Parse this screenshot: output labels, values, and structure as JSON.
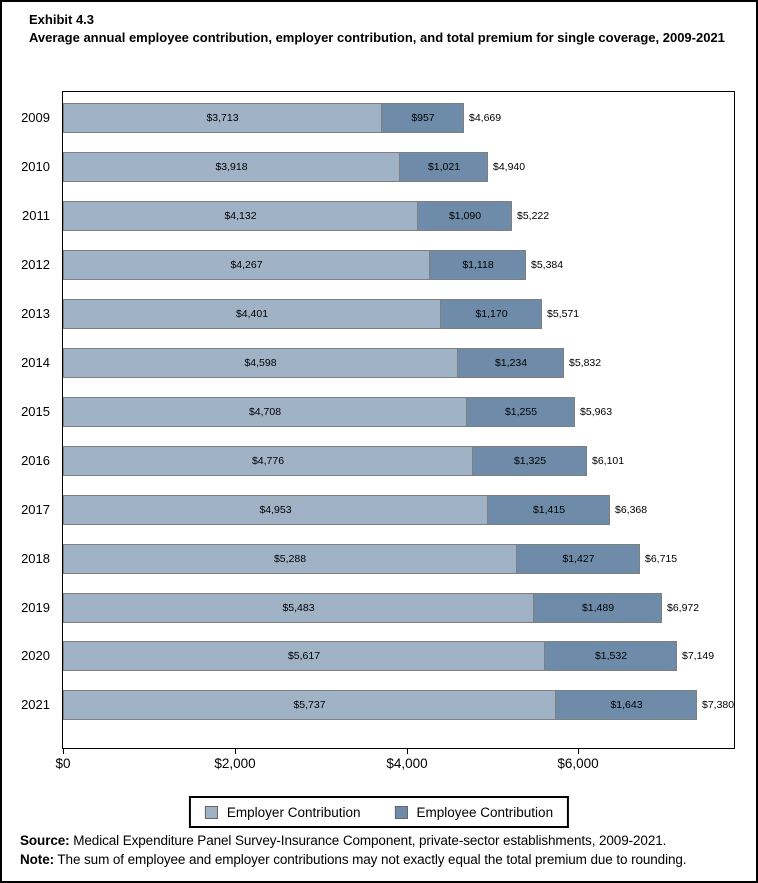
{
  "title": {
    "exhibit": "Exhibit 4.3",
    "text": "Average annual employee contribution, employer contribution, and total premium for single coverage, 2009-2021"
  },
  "chart_data": {
    "type": "bar",
    "orientation": "horizontal",
    "stacked": true,
    "title": "Average annual employee contribution, employer contribution, and total premium for single coverage, 2009-2021",
    "categories": [
      "2009",
      "2010",
      "2011",
      "2012",
      "2013",
      "2014",
      "2015",
      "2016",
      "2017",
      "2018",
      "2019",
      "2020",
      "2021"
    ],
    "series": [
      {
        "name": "Employer Contribution",
        "color": "#a0b2c6",
        "values": [
          3713,
          3918,
          4132,
          4267,
          4401,
          4598,
          4708,
          4776,
          4953,
          5288,
          5483,
          5617,
          5737
        ],
        "labels": [
          "$3,713",
          "$3,918",
          "$4,132",
          "$4,267",
          "$4,401",
          "$4,598",
          "$4,708",
          "$4,776",
          "$4,953",
          "$5,288",
          "$5,483",
          "$5,617",
          "$5,737"
        ]
      },
      {
        "name": "Employee Contribution",
        "color": "#6e8ca9",
        "values": [
          957,
          1021,
          1090,
          1118,
          1170,
          1234,
          1255,
          1325,
          1415,
          1427,
          1489,
          1532,
          1643
        ],
        "labels": [
          "$957",
          "$1,021",
          "$1,090",
          "$1,118",
          "$1,170",
          "$1,234",
          "$1,255",
          "$1,325",
          "$1,415",
          "$1,427",
          "$1,489",
          "$1,532",
          "$1,643"
        ]
      }
    ],
    "totals": [
      4669,
      4940,
      5222,
      5384,
      5571,
      5832,
      5963,
      6101,
      6368,
      6715,
      6972,
      7149,
      7380
    ],
    "total_labels": [
      "$4,669",
      "$4,940",
      "$5,222",
      "$5,384",
      "$5,571",
      "$5,832",
      "$5,963",
      "$6,101",
      "$6,368",
      "$6,715",
      "$6,972",
      "$7,149",
      "$7,380"
    ],
    "x_ticks": [
      {
        "value": 0,
        "label": "$0"
      },
      {
        "value": 2000,
        "label": "$2,000"
      },
      {
        "value": 4000,
        "label": "$4,000"
      },
      {
        "value": 6000,
        "label": "$6,000"
      }
    ],
    "xlim": [
      0,
      7800
    ],
    "grid": false,
    "legend_position": "bottom"
  },
  "legend": {
    "items": [
      {
        "label": "Employer Contribution",
        "color": "#a0b2c6"
      },
      {
        "label": "Employee Contribution",
        "color": "#6e8ca9"
      }
    ]
  },
  "footer": {
    "source_label": "Source:",
    "source_text": " Medical Expenditure Panel Survey-Insurance Component, private-sector establishments, 2009-2021.",
    "note_label": "Note:",
    "note_text": " The sum of employee and employer contributions may not exactly equal the total premium due to rounding."
  }
}
